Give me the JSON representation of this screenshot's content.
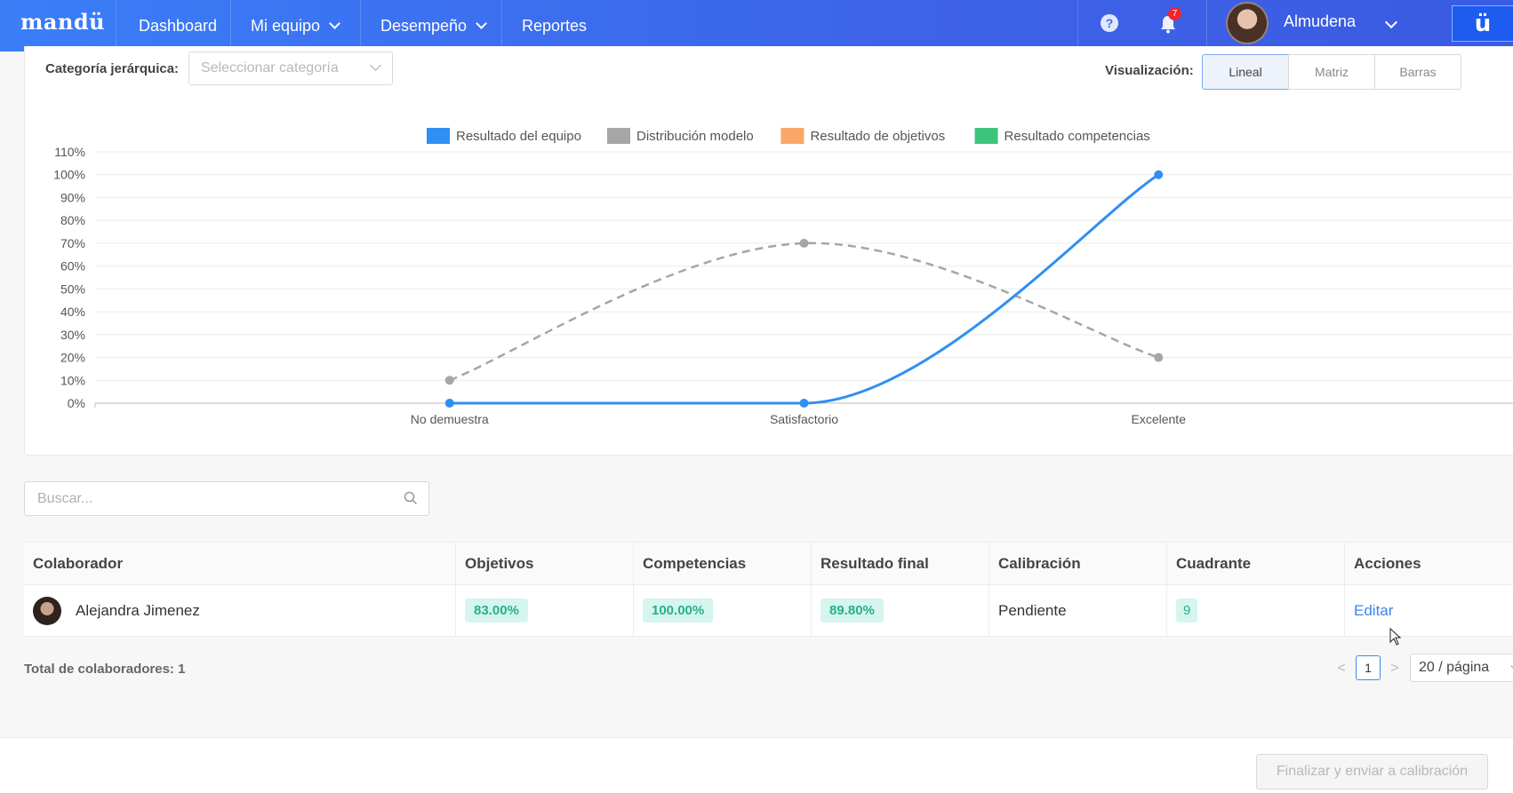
{
  "nav": {
    "logo": "mandü",
    "items": [
      {
        "label": "Dashboard",
        "has_chevron": false
      },
      {
        "label": "Mi equipo",
        "has_chevron": true
      },
      {
        "label": "Desempeño",
        "has_chevron": true
      },
      {
        "label": "Reportes",
        "has_chevron": false
      }
    ],
    "help": "?",
    "notifications_count": "7",
    "user_name": "Almudena",
    "brand_button": "ü"
  },
  "filters": {
    "category_label": "Categoría jerárquica:",
    "category_placeholder": "Seleccionar categoría",
    "visualization_label": "Visualización:",
    "visualization_options": [
      "Lineal",
      "Matriz",
      "Barras"
    ],
    "visualization_selected": "Lineal"
  },
  "chart_data": {
    "type": "line",
    "categories": [
      "No demuestra",
      "Satisfactorio",
      "Excelente"
    ],
    "y_ticks": [
      "0%",
      "10%",
      "20%",
      "30%",
      "40%",
      "50%",
      "60%",
      "70%",
      "80%",
      "90%",
      "100%",
      "110%"
    ],
    "ylim": [
      0,
      110
    ],
    "grid": true,
    "legend_position": "top-center",
    "legend": [
      {
        "name": "Resultado del equipo",
        "color": "#2f8ff2"
      },
      {
        "name": "Distribución modelo",
        "color": "#a6a6a6"
      },
      {
        "name": "Resultado de objetivos",
        "color": "#f9a76b"
      },
      {
        "name": "Resultado competencias",
        "color": "#3dc47b"
      }
    ],
    "series": [
      {
        "name": "Resultado del equipo",
        "values": [
          0,
          0,
          100
        ],
        "color": "#2f8ff2",
        "dashed": false
      },
      {
        "name": "Distribución modelo",
        "values": [
          10,
          70,
          20
        ],
        "color": "#a6a6a6",
        "dashed": true
      }
    ]
  },
  "search": {
    "placeholder": "Buscar..."
  },
  "table": {
    "headers": [
      "Colaborador",
      "Objetivos",
      "Competencias",
      "Resultado final",
      "Calibración",
      "Cuadrante",
      "Acciones"
    ],
    "rows": [
      {
        "colaborador": "Alejandra Jimenez",
        "objetivos": "83.00%",
        "competencias": "100.00%",
        "resultado_final": "89.80%",
        "calibracion": "Pendiente",
        "cuadrante": "9",
        "accion": "Editar"
      }
    ]
  },
  "footer": {
    "total_label": "Total de colaboradores: 1",
    "current_page": "1",
    "page_size": "20 / página",
    "prev": "<",
    "next": ">"
  },
  "finish_button": "Finalizar y enviar a calibración"
}
